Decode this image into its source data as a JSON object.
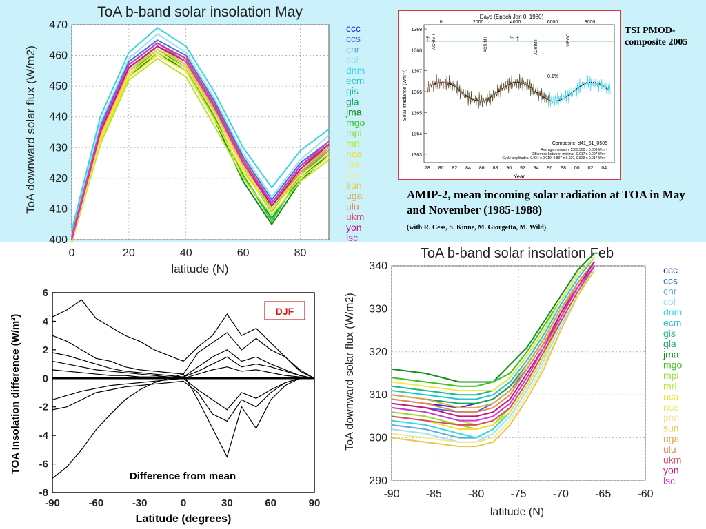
{
  "models": [
    {
      "name": "ccc",
      "color": "#2b2bd9"
    },
    {
      "name": "ccs",
      "color": "#3f6fe0"
    },
    {
      "name": "cnr",
      "color": "#62a9d8"
    },
    {
      "name": "col",
      "color": "#9de0ef"
    },
    {
      "name": "dnm",
      "color": "#36d6e4"
    },
    {
      "name": "ecm",
      "color": "#20c9c9"
    },
    {
      "name": "gis",
      "color": "#1bb98a"
    },
    {
      "name": "gla",
      "color": "#17a25a"
    },
    {
      "name": "jma",
      "color": "#0f8f16"
    },
    {
      "name": "mgo",
      "color": "#39c21f"
    },
    {
      "name": "mpi",
      "color": "#8de02c"
    },
    {
      "name": "mri",
      "color": "#b9e62a"
    },
    {
      "name": "nca",
      "color": "#f2e12c"
    },
    {
      "name": "nce",
      "color": "#f5e650"
    },
    {
      "name": "pnn",
      "color": "#f4e79a"
    },
    {
      "name": "sun",
      "color": "#e6c94a"
    },
    {
      "name": "uga",
      "color": "#e3a84b"
    },
    {
      "name": "ulu",
      "color": "#e48a55"
    },
    {
      "name": "ukm",
      "color": "#d84a5e"
    },
    {
      "name": "yon",
      "color": "#c8157a"
    },
    {
      "name": "lsc",
      "color": "#d534d8"
    }
  ],
  "tsi": {
    "label": "TSI PMOD-composite 2005",
    "top_axis_title": "Days (Epoch Jan 0, 1980)",
    "top_ticks": [
      "0",
      "2000",
      "4000",
      "6000",
      "8000"
    ],
    "y_title": "Solar Irradiance (Wm⁻²)",
    "y_ticks": [
      "1363",
      "1364",
      "1365",
      "1366",
      "1367",
      "1368",
      "1369"
    ],
    "x_ticks": [
      "78",
      "80",
      "82",
      "84",
      "86",
      "88",
      "90",
      "92",
      "94",
      "96",
      "98",
      "00",
      "02",
      "04"
    ],
    "x_title": "Year",
    "instruments": [
      "HF",
      "ACRIM I",
      "HF",
      "ACRIM II",
      "VIRGO"
    ],
    "instruments2": [
      "ACRIM I",
      "HF"
    ],
    "pct": "0.1%",
    "composite": "Composite: d41_61_0505",
    "stats": [
      "Average minimum:  1365.560 ± 0.009 Wm⁻²",
      "Difference between minima:  -0.017 ± 0.007 Wm⁻²",
      "Cycle amplitudes:  0.934 ± 0.019, 0.897 ± 0.020, 0.829 ± 0.017 Wm⁻²"
    ]
  },
  "amip": {
    "title": "AMIP-2, mean incoming solar radiation at TOA in May and November (1985-1988)",
    "subtitle": "(with R. Cess, S. Kinne, M. Giorgetta, M. Wild)"
  },
  "chart_data": [
    {
      "type": "line",
      "title": "ToA b-band solar insolation May",
      "xlabel": "latitude (N)",
      "ylabel": "ToA downward solar flux (W/m2)",
      "xlim": [
        0,
        90
      ],
      "ylim": [
        400,
        470
      ],
      "x_ticks": [
        0,
        20,
        40,
        60,
        80
      ],
      "y_ticks": [
        400,
        410,
        420,
        430,
        440,
        450,
        460,
        470
      ],
      "grid": true,
      "legend": "right",
      "x": [
        0,
        10,
        20,
        30,
        40,
        50,
        60,
        70,
        80,
        90
      ],
      "series_values": [
        [
          400,
          436,
          457,
          464,
          459,
          444,
          426,
          412,
          424,
          431
        ],
        [
          401,
          437,
          458,
          465,
          460,
          445,
          427,
          413,
          425,
          432
        ],
        [
          400,
          435,
          456,
          463,
          458,
          443,
          425,
          411,
          423,
          430
        ],
        [
          402,
          438,
          459,
          467,
          461,
          446,
          428,
          414,
          426,
          434
        ],
        [
          403,
          440,
          461,
          469,
          463,
          448,
          430,
          417,
          429,
          436
        ],
        [
          401,
          436,
          457,
          464,
          459,
          444,
          426,
          412,
          423,
          431
        ],
        [
          400,
          434,
          455,
          462,
          457,
          442,
          424,
          410,
          421,
          429
        ],
        [
          400,
          433,
          454,
          461,
          456,
          440,
          421,
          407,
          420,
          428
        ],
        [
          399,
          432,
          453,
          461,
          455,
          439,
          419,
          405,
          419,
          428
        ],
        [
          400,
          433,
          454,
          462,
          456,
          440,
          421,
          406,
          421,
          430
        ],
        [
          400,
          434,
          455,
          463,
          457,
          441,
          423,
          409,
          422,
          430
        ],
        [
          399,
          431,
          452,
          459,
          453,
          437,
          420,
          408,
          419,
          426
        ],
        [
          399,
          432,
          453,
          460,
          455,
          439,
          422,
          410,
          420,
          427
        ],
        [
          400,
          433,
          454,
          461,
          456,
          441,
          423,
          411,
          421,
          428
        ],
        [
          400,
          434,
          455,
          462,
          457,
          442,
          424,
          412,
          422,
          429
        ],
        [
          400,
          434,
          455,
          462,
          457,
          442,
          424,
          411,
          422,
          429
        ],
        [
          401,
          435,
          456,
          463,
          458,
          443,
          425,
          412,
          423,
          430
        ],
        [
          401,
          436,
          457,
          464,
          459,
          443,
          425,
          411,
          422,
          429
        ],
        [
          401,
          436,
          457,
          464,
          459,
          444,
          426,
          412,
          424,
          431
        ],
        [
          400,
          435,
          456,
          463,
          458,
          443,
          425,
          411,
          423,
          431
        ],
        [
          400,
          436,
          457,
          464,
          458,
          443,
          425,
          412,
          424,
          432
        ]
      ]
    },
    {
      "type": "line",
      "title": "ToA b-band solar insolation Feb",
      "xlabel": "latitude (N)",
      "ylabel": "ToA downward solar flux (W/m2)",
      "xlim": [
        -90,
        -60
      ],
      "ylim": [
        290,
        340
      ],
      "x_ticks": [
        -90,
        -85,
        -80,
        -75,
        -70,
        -65,
        -60
      ],
      "y_ticks": [
        290,
        300,
        310,
        320,
        330,
        340
      ],
      "grid": true,
      "legend": "right",
      "x": [
        -90,
        -86,
        -82,
        -80,
        -78,
        -76,
        -74,
        -72,
        -70,
        -68,
        -66
      ],
      "series_values": [
        [
          309,
          308,
          307,
          308,
          309,
          312,
          317,
          323,
          330,
          336,
          341
        ],
        [
          308,
          307,
          306,
          306,
          308,
          311,
          316,
          322,
          329,
          336,
          341
        ],
        [
          303,
          302,
          300,
          300,
          302,
          306,
          312,
          319,
          327,
          334,
          340
        ],
        [
          302,
          301,
          299,
          299,
          301,
          305,
          311,
          318,
          326,
          333,
          340
        ],
        [
          304,
          303,
          301,
          300,
          302,
          306,
          312,
          319,
          327,
          334,
          340
        ],
        [
          311,
          310,
          309,
          309,
          310,
          313,
          318,
          324,
          331,
          337,
          342
        ],
        [
          312,
          311,
          310,
          310,
          311,
          314,
          319,
          325,
          332,
          338,
          342
        ],
        [
          310,
          309,
          308,
          308,
          309,
          312,
          317,
          323,
          330,
          336,
          341
        ],
        [
          316,
          315,
          313,
          313,
          313,
          317,
          321,
          327,
          333,
          339,
          343
        ],
        [
          314,
          313,
          312,
          312,
          313,
          315,
          320,
          326,
          332,
          338,
          342
        ],
        [
          306,
          305,
          303,
          302,
          303,
          307,
          313,
          320,
          327,
          334,
          340
        ],
        [
          307,
          306,
          304,
          303,
          304,
          307,
          313,
          320,
          328,
          335,
          340
        ],
        [
          305,
          304,
          302,
          302,
          303,
          306,
          312,
          319,
          327,
          334,
          340
        ],
        [
          313,
          312,
          311,
          311,
          311,
          314,
          319,
          325,
          332,
          338,
          342
        ],
        [
          301,
          300,
          299,
          299,
          300,
          304,
          310,
          317,
          325,
          333,
          339
        ],
        [
          300,
          299,
          298,
          298,
          299,
          303,
          309,
          316,
          325,
          333,
          339
        ],
        [
          310,
          309,
          307,
          307,
          308,
          311,
          317,
          323,
          330,
          336,
          341
        ],
        [
          309,
          308,
          306,
          306,
          307,
          310,
          316,
          322,
          329,
          336,
          341
        ],
        [
          305,
          304,
          303,
          303,
          304,
          307,
          313,
          320,
          327,
          334,
          340
        ],
        [
          308,
          307,
          305,
          305,
          306,
          309,
          315,
          321,
          329,
          335,
          341
        ],
        [
          307,
          306,
          304,
          304,
          305,
          308,
          314,
          321,
          328,
          335,
          340
        ]
      ]
    },
    {
      "type": "line",
      "xlabel": "Latitude (degrees)",
      "ylabel": "TOA Insolation difference (W/m²)",
      "annotation": "Difference from mean",
      "badge": "DJF",
      "xlim": [
        -90,
        90
      ],
      "ylim": [
        -8,
        6
      ],
      "x_ticks": [
        -90,
        -60,
        -30,
        0,
        30,
        60,
        90
      ],
      "y_ticks": [
        -8,
        -6,
        -4,
        -2,
        0,
        2,
        4,
        6
      ],
      "grid": false,
      "x": [
        -90,
        -80,
        -70,
        -60,
        -50,
        -40,
        -30,
        -20,
        -10,
        0,
        10,
        20,
        30,
        40,
        50,
        60,
        70,
        80,
        90
      ],
      "series_values": [
        [
          4.3,
          4.8,
          5.5,
          4.2,
          3.6,
          3.0,
          2.6,
          2.0,
          1.6,
          1.2,
          2.2,
          3.0,
          4.5,
          3.0,
          3.5,
          2.5,
          1.5,
          0.5,
          0
        ],
        [
          -7.0,
          -6.2,
          -5.0,
          -3.6,
          -2.5,
          -1.5,
          -0.8,
          -0.3,
          0.0,
          0.3,
          -1.5,
          -3.5,
          -5.5,
          -2.0,
          -3.5,
          -1.5,
          -0.5,
          0,
          0
        ],
        [
          3.0,
          2.6,
          2.0,
          1.4,
          1.2,
          0.8,
          0.6,
          0.5,
          0.4,
          0.3,
          1.8,
          2.5,
          3.2,
          2.0,
          2.8,
          2.0,
          1.5,
          0.6,
          0
        ],
        [
          -2.2,
          -2.0,
          -1.5,
          -1.0,
          -0.8,
          -0.6,
          -0.5,
          -0.4,
          -0.3,
          -0.2,
          -1.0,
          -2.5,
          -3.0,
          -1.5,
          -2.0,
          -1.0,
          -0.3,
          0,
          0
        ],
        [
          1.8,
          1.6,
          1.3,
          1.0,
          0.7,
          0.5,
          0.4,
          0.3,
          0.2,
          0.1,
          0.8,
          1.5,
          2.0,
          1.2,
          1.5,
          1.0,
          0.6,
          0.2,
          0
        ],
        [
          -1.5,
          -1.2,
          -0.9,
          -0.7,
          -0.5,
          -0.4,
          -0.3,
          -0.2,
          -0.1,
          0,
          -0.8,
          -1.5,
          -2.2,
          -1.0,
          -1.4,
          -0.8,
          -0.3,
          0,
          0
        ],
        [
          1.2,
          1.0,
          0.8,
          0.6,
          0.5,
          0.4,
          0.3,
          0.2,
          0.1,
          0.1,
          0.5,
          1.0,
          1.5,
          0.8,
          1.0,
          0.8,
          0.5,
          0.2,
          0
        ],
        [
          0.6,
          0.5,
          0.4,
          0.3,
          0.2,
          0.2,
          0.1,
          0.1,
          0.1,
          0,
          0.3,
          0.6,
          0.8,
          0.5,
          0.6,
          0.4,
          0.2,
          0.1,
          0
        ]
      ]
    }
  ]
}
